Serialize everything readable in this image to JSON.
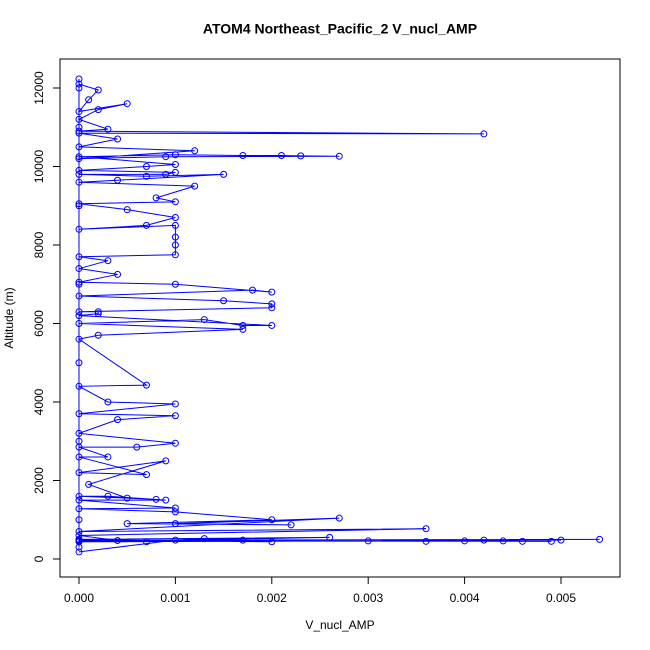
{
  "chart_data": {
    "type": "line",
    "markers": true,
    "color": "#0000ff",
    "title": "ATOM4 Northeast_Pacific_2 V_nucl_AMP",
    "x_label": "V_nucl_AMP",
    "y_label": "Altitude (m)",
    "xlim": [
      -0.000197,
      0.005612
    ],
    "ylim": [
      -459,
      12739
    ],
    "xticks": [
      {
        "value": 0,
        "label": "0.000"
      },
      {
        "value": 0.001,
        "label": "0.001"
      },
      {
        "value": 0.002,
        "label": "0.002"
      },
      {
        "value": 0.003,
        "label": "0.003"
      },
      {
        "value": 0.004,
        "label": "0.004"
      },
      {
        "value": 0.005,
        "label": "0.005"
      }
    ],
    "yticks": [
      0,
      2000,
      4000,
      6000,
      8000,
      10000,
      12000
    ],
    "x": [
      0,
      0.001,
      0.0054,
      0,
      0.005,
      0,
      0.0049,
      0.0046,
      0.0044,
      0.0042,
      0.004,
      0.0036,
      0.003,
      0,
      0.0026,
      0,
      0.002,
      0,
      0.0017,
      0.0013,
      0.0007,
      0,
      0.0004,
      0,
      0.0036,
      0,
      0.0027,
      0.001,
      0.0022,
      0.0005,
      0.002,
      0.001,
      0,
      0.001,
      0,
      0.0009,
      0.0003,
      0,
      0.0008,
      0.0005,
      0.0001,
      0.0009,
      0,
      0.0007,
      0,
      0.0003,
      0,
      0.0006,
      0.001,
      0,
      0.0004,
      0.001,
      0,
      0.001,
      0.0003,
      0,
      0.0007,
      0,
      0.0002,
      0.0017,
      0,
      0.0013,
      0.0017,
      0.002,
      0,
      0.0002,
      0.0002,
      0,
      0.002,
      0.002,
      0.0015,
      0,
      0.0018,
      0.002,
      0.001,
      0,
      0.0004,
      0,
      0.0003,
      0,
      0.001,
      0.001,
      0.001,
      0.001,
      0,
      0.0007,
      0.001,
      0.0005,
      0,
      0.001,
      0.0008,
      0.0012,
      0,
      0.0004,
      0.0015,
      0.0007,
      0,
      0.0009,
      0.001,
      0,
      0.0007,
      0.001,
      0,
      0.001,
      0.0017,
      0.0021,
      0.0023,
      0.0027,
      0.0009,
      0,
      0.0012,
      0,
      0.0004,
      0,
      0.0042,
      0,
      0.0003,
      0,
      0.0002,
      0.0005,
      0,
      0.0001,
      0.0002,
      0,
      0,
      0,
      0,
      0,
      0,
      0,
      0,
      0,
      0
    ],
    "y": [
      180,
      480,
      500,
      470,
      480,
      460,
      450,
      450,
      460,
      480,
      460,
      450,
      460,
      440,
      550,
      500,
      440,
      480,
      480,
      520,
      440,
      450,
      470,
      600,
      770,
      700,
      1040,
      900,
      870,
      900,
      1000,
      1200,
      1280,
      1300,
      1500,
      1500,
      1600,
      1600,
      1520,
      1550,
      1900,
      2500,
      2200,
      2150,
      2600,
      2600,
      2850,
      2850,
      2950,
      3200,
      3550,
      3650,
      3700,
      3950,
      4000,
      4400,
      4430,
      5600,
      5700,
      5850,
      6000,
      6100,
      5950,
      5950,
      6200,
      6250,
      6300,
      6300,
      6400,
      6500,
      6580,
      6700,
      6850,
      6800,
      7000,
      7050,
      7250,
      7400,
      7600,
      7700,
      7750,
      8000,
      8200,
      8500,
      8400,
      8500,
      8700,
      8900,
      9050,
      9100,
      9200,
      9500,
      9600,
      9650,
      9800,
      9750,
      9800,
      9800,
      9850,
      9900,
      10000,
      10050,
      10250,
      10300,
      10280,
      10280,
      10270,
      10260,
      10250,
      10200,
      10400,
      10500,
      10700,
      10850,
      10830,
      10900,
      10950,
      11200,
      11450,
      11600,
      11400,
      11700,
      11950,
      12100,
      12230,
      12000,
      11000,
      9000,
      7000,
      5000,
      3000,
      1000,
      300
    ]
  }
}
